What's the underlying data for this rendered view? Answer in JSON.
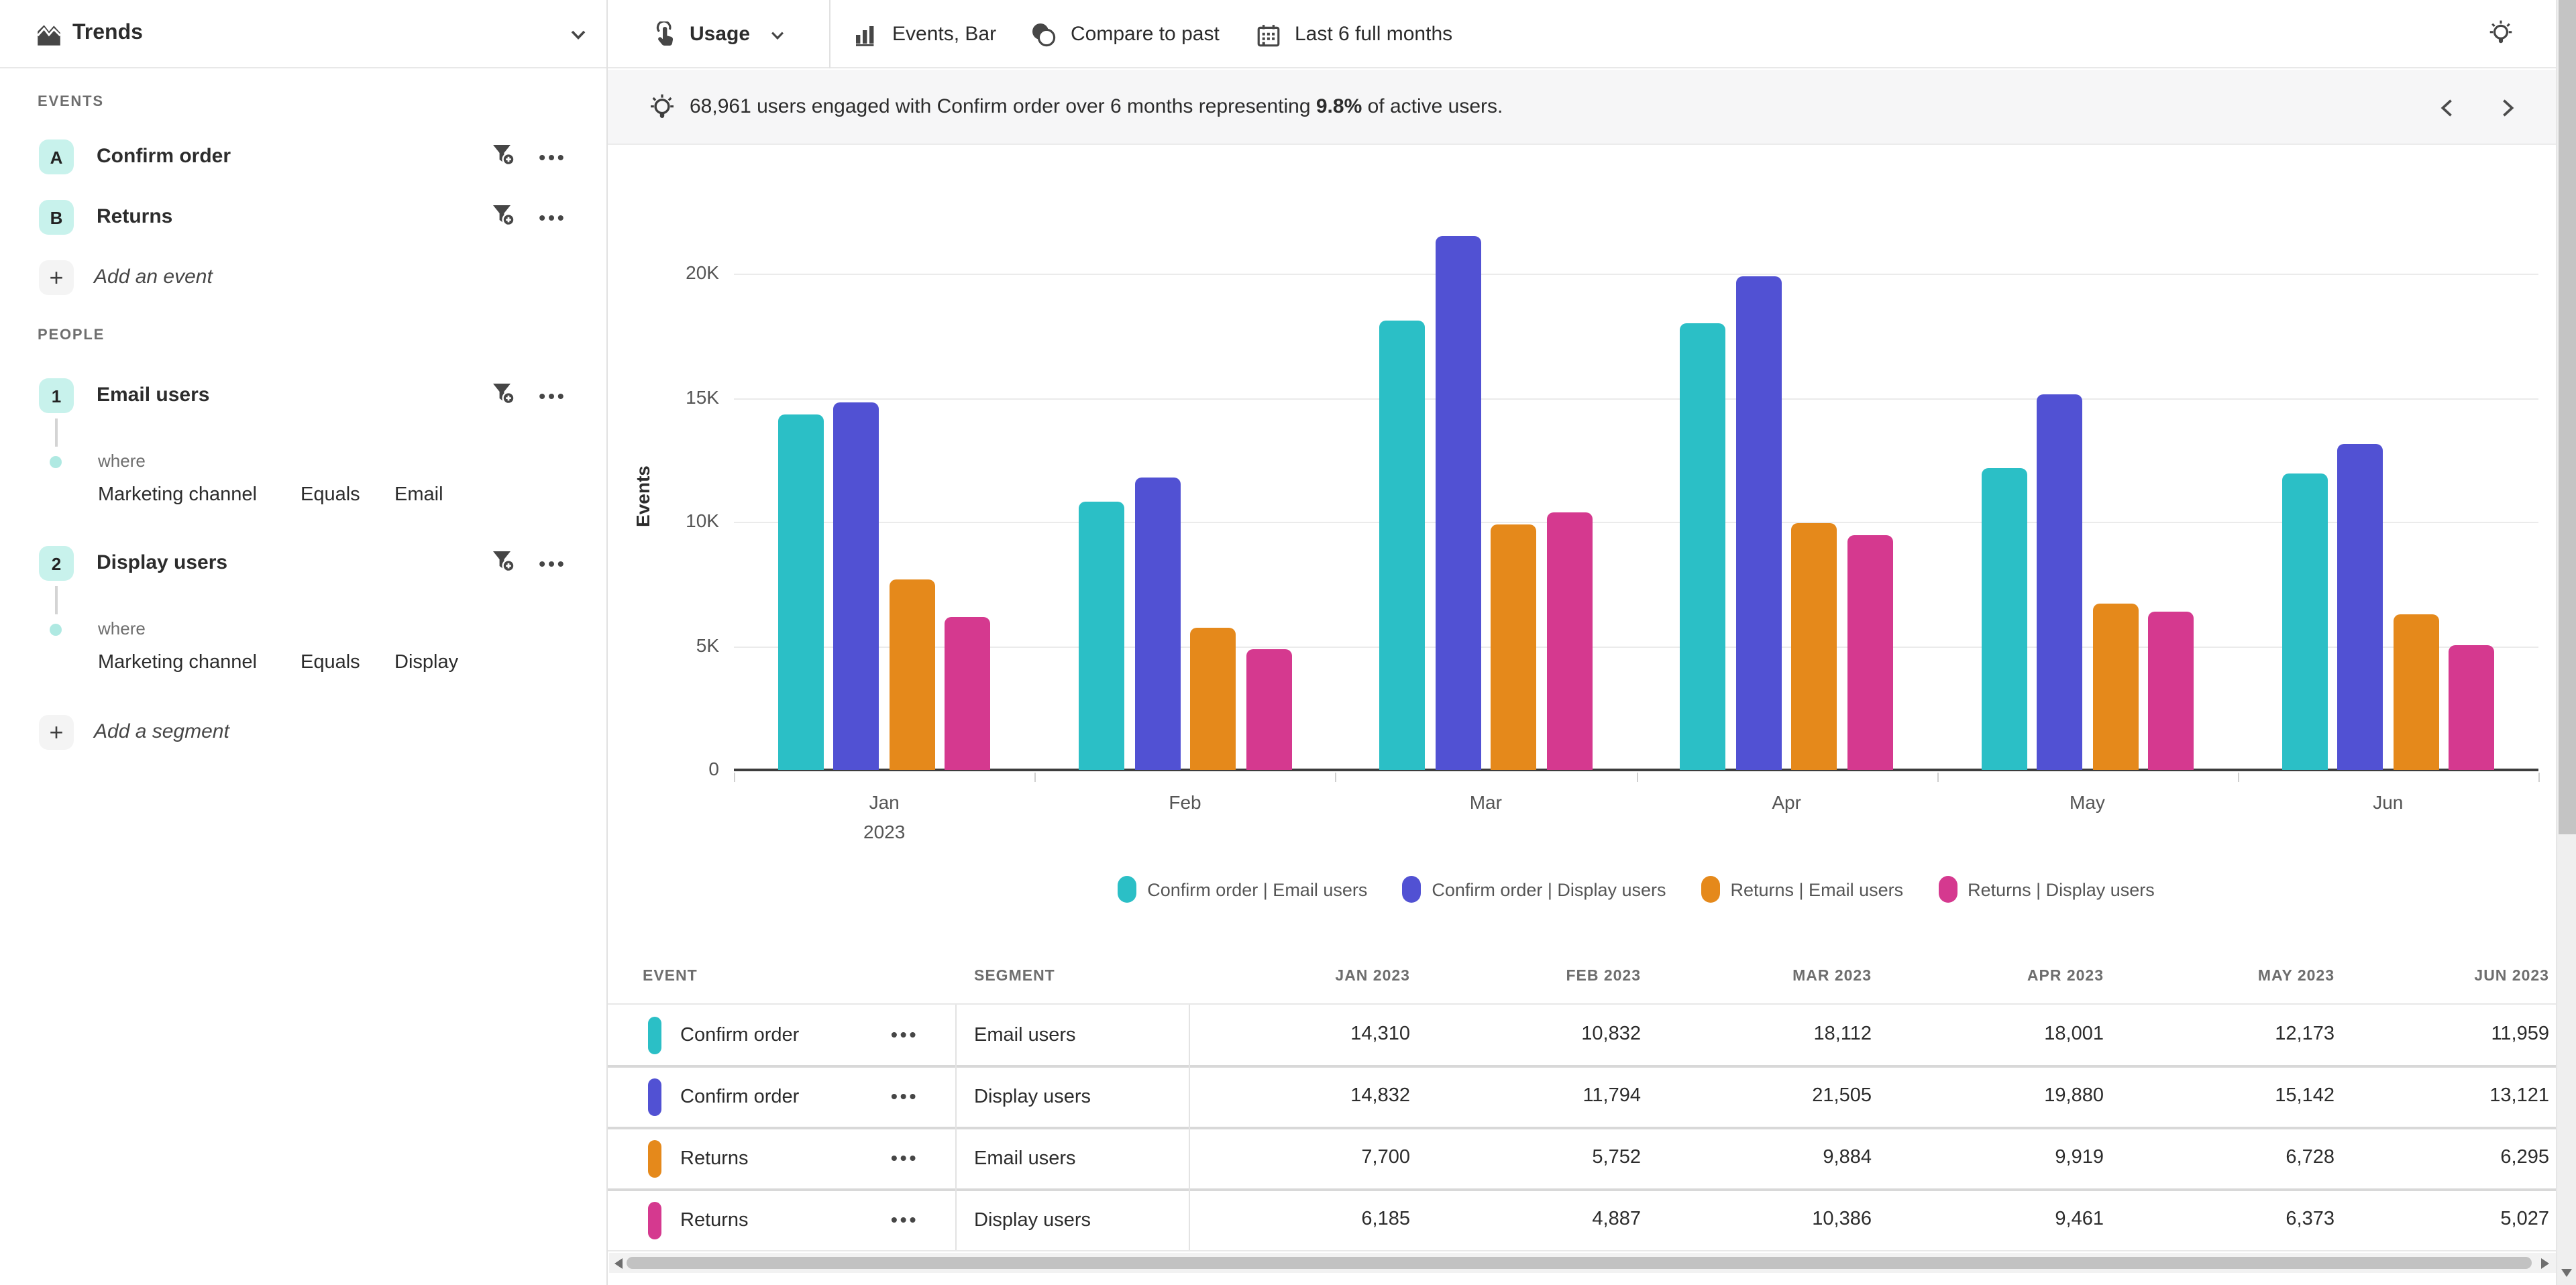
{
  "sidebar": {
    "title": "Trends",
    "events": {
      "label": "EVENTS",
      "add_label": "Add an event",
      "items": [
        {
          "badge": "A",
          "name": "Confirm order"
        },
        {
          "badge": "B",
          "name": "Returns"
        }
      ]
    },
    "people": {
      "label": "PEOPLE",
      "add_label": "Add a segment",
      "items": [
        {
          "badge": "1",
          "name": "Email users",
          "where_label": "where",
          "property": "Marketing channel",
          "operator": "Equals",
          "value": "Email"
        },
        {
          "badge": "2",
          "name": "Display users",
          "where_label": "where",
          "property": "Marketing channel",
          "operator": "Equals",
          "value": "Display"
        }
      ]
    }
  },
  "toolbar": {
    "metric_label": "Usage",
    "view_label": "Events, Bar",
    "compare_label": "Compare to past",
    "range_label": "Last 6 full months"
  },
  "banner": {
    "prefix": "68,961 users engaged with Confirm order over 6 months representing ",
    "highlight": "9.8%",
    "suffix": " of active users."
  },
  "chart_data": {
    "type": "bar",
    "title": "",
    "ylabel": "Events",
    "xlabel": "",
    "categories": [
      "Jan",
      "Feb",
      "Mar",
      "Apr",
      "May",
      "Jun"
    ],
    "x_year_label": {
      "category_index": 0,
      "text": "2023"
    },
    "ylim": [
      0,
      22000
    ],
    "yticks": [
      {
        "value": 0,
        "label": "0"
      },
      {
        "value": 5000,
        "label": "5K"
      },
      {
        "value": 10000,
        "label": "10K"
      },
      {
        "value": 15000,
        "label": "15K"
      },
      {
        "value": 20000,
        "label": "20K"
      }
    ],
    "grid": true,
    "legend_position": "bottom",
    "series": [
      {
        "name": "Confirm order | Email users",
        "color": "#2BBFC6",
        "values": [
          14310,
          10832,
          18112,
          18001,
          12173,
          11959
        ]
      },
      {
        "name": "Confirm order | Display users",
        "color": "#5151D3",
        "values": [
          14832,
          11794,
          21505,
          19880,
          15142,
          13121
        ]
      },
      {
        "name": "Returns | Email users",
        "color": "#E5891B",
        "values": [
          7700,
          5752,
          9884,
          9919,
          6728,
          6295
        ]
      },
      {
        "name": "Returns | Display users",
        "color": "#D5398F",
        "values": [
          6185,
          4887,
          10386,
          9461,
          6373,
          5027
        ]
      }
    ]
  },
  "table": {
    "event_col": "EVENT",
    "segment_col": "SEGMENT",
    "month_cols": [
      "JAN 2023",
      "FEB 2023",
      "MAR 2023",
      "APR 2023",
      "MAY 2023",
      "JUN 2023"
    ],
    "rows": [
      {
        "color": "#2BBFC6",
        "event": "Confirm order",
        "segment": "Email users",
        "values": [
          "14,310",
          "10,832",
          "18,112",
          "18,001",
          "12,173",
          "11,959"
        ]
      },
      {
        "color": "#5151D3",
        "event": "Confirm order",
        "segment": "Display users",
        "values": [
          "14,832",
          "11,794",
          "21,505",
          "19,880",
          "15,142",
          "13,121"
        ]
      },
      {
        "color": "#E5891B",
        "event": "Returns",
        "segment": "Email users",
        "values": [
          "7,700",
          "5,752",
          "9,884",
          "9,919",
          "6,728",
          "6,295"
        ]
      },
      {
        "color": "#D5398F",
        "event": "Returns",
        "segment": "Display users",
        "values": [
          "6,185",
          "4,887",
          "10,386",
          "9,461",
          "6,373",
          "5,027"
        ]
      }
    ]
  }
}
